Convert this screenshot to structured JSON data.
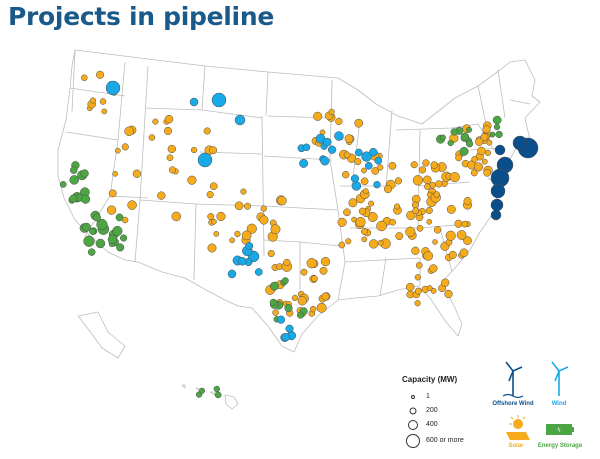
{
  "title": "Projects in pipeline",
  "legend": {
    "title": "Capacity (MW)",
    "sizes": [
      {
        "label": "1",
        "mw": 1
      },
      {
        "label": "200",
        "mw": 200
      },
      {
        "label": "400",
        "mw": 400
      },
      {
        "label": "600 or more",
        "mw": 600
      }
    ],
    "types": [
      {
        "key": "offshore",
        "label": "Offshore Wind",
        "color": "#0b4f8a"
      },
      {
        "key": "wind",
        "label": "Wind",
        "color": "#19a9e6"
      },
      {
        "key": "solar",
        "label": "Solar",
        "color": "#f6ab1c"
      },
      {
        "key": "storage",
        "label": "Energy Storage",
        "color": "#4ca644"
      }
    ]
  },
  "colors": {
    "offshore": "#0b4f8a",
    "wind": "#19a9e6",
    "solar": "#f6ab1c",
    "storage": "#4ca644",
    "title": "#1a5a8a",
    "state_line": "#bdbdbd"
  }
}
